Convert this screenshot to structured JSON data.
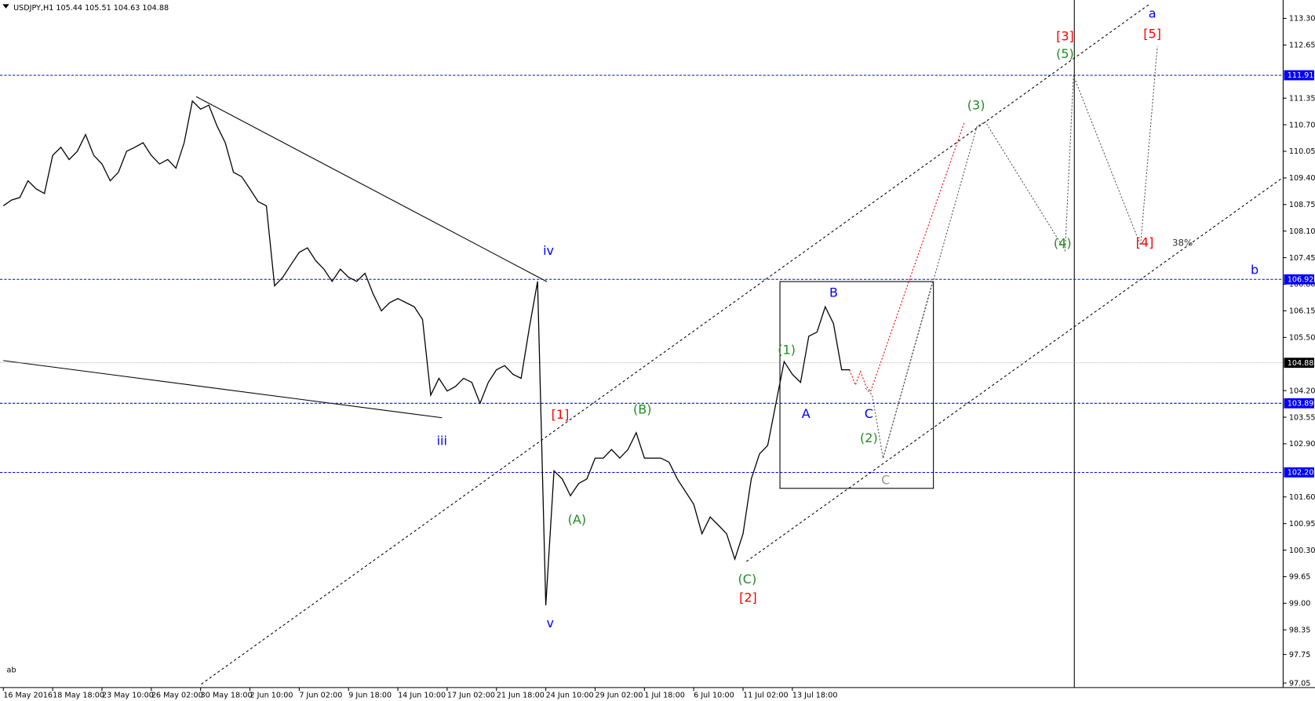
{
  "chart_data": {
    "type": "line",
    "title": "USDJPY,H1  105.44 105.51 104.63 104.88",
    "corner_label": "ab",
    "color": "#000000",
    "categories": [
      "16 May 2016",
      null,
      null,
      null,
      null,
      null,
      "18 May 18:00",
      null,
      null,
      null,
      null,
      null,
      "23 May 10:00",
      null,
      null,
      null,
      null,
      null,
      "26 May 02:00",
      null,
      null,
      null,
      null,
      null,
      "30 May 18:00",
      null,
      null,
      null,
      null,
      null,
      "2 Jun 10:00",
      null,
      null,
      null,
      null,
      null,
      "7 Jun 02:00",
      null,
      null,
      null,
      null,
      null,
      "9 Jun 18:00",
      null,
      null,
      null,
      null,
      null,
      "14 Jun 10:00",
      null,
      null,
      null,
      null,
      null,
      "17 Jun 02:00",
      null,
      null,
      null,
      null,
      null,
      "21 Jun 18:00",
      null,
      null,
      null,
      null,
      null,
      "24 Jun 10:00",
      null,
      null,
      null,
      null,
      null,
      "29 Jun 02:00",
      null,
      null,
      null,
      null,
      null,
      "1 Jul 18:00",
      null,
      null,
      null,
      null,
      null,
      "6 Jul 10:00",
      null,
      null,
      null,
      null,
      null,
      "11 Jul 02:00",
      null,
      null,
      null,
      null,
      null,
      "13 Jul 18:00",
      null,
      null,
      null,
      null,
      null,
      null,
      null
    ],
    "values": [
      108.72,
      108.86,
      108.92,
      109.33,
      109.13,
      109.02,
      109.95,
      110.15,
      109.85,
      110.05,
      110.46,
      109.95,
      109.74,
      109.33,
      109.54,
      110.05,
      110.15,
      110.26,
      109.95,
      109.74,
      109.85,
      109.64,
      110.26,
      111.28,
      111.08,
      111.18,
      110.67,
      110.26,
      109.54,
      109.43,
      109.13,
      108.82,
      108.72,
      106.76,
      106.97,
      107.28,
      107.58,
      107.69,
      107.38,
      107.17,
      106.87,
      107.17,
      106.97,
      106.87,
      107.07,
      106.56,
      106.15,
      106.35,
      106.45,
      106.35,
      106.25,
      105.94,
      104.09,
      104.5,
      104.19,
      104.3,
      104.5,
      104.4,
      103.89,
      104.4,
      104.71,
      104.81,
      104.6,
      104.5,
      105.74,
      106.87,
      98.95,
      102.24,
      102.04,
      101.63,
      101.93,
      102.04,
      102.55,
      102.55,
      102.76,
      102.55,
      102.76,
      103.17,
      102.55,
      102.55,
      102.55,
      102.45,
      102.04,
      101.73,
      101.42,
      100.7,
      101.11,
      100.91,
      100.7,
      100.08,
      100.7,
      102.04,
      102.65,
      102.86,
      103.89,
      104.91,
      104.6,
      104.4,
      105.53,
      105.63,
      106.25,
      105.84,
      104.71,
      104.71
    ],
    "ylim": [
      96.94,
      113.75
    ],
    "yticks": [
      {
        "value": 113.3,
        "label": "113.30"
      },
      {
        "value": 112.65,
        "label": "112.65"
      },
      {
        "value": 111.35,
        "label": "111.35"
      },
      {
        "value": 110.7,
        "label": "110.70"
      },
      {
        "value": 110.05,
        "label": "110.05"
      },
      {
        "value": 109.4,
        "label": "109.40"
      },
      {
        "value": 108.75,
        "label": "108.75"
      },
      {
        "value": 108.1,
        "label": "108.10"
      },
      {
        "value": 107.45,
        "label": "107.45"
      },
      {
        "value": 106.8,
        "label": "106.80"
      },
      {
        "value": 106.15,
        "label": "106.15"
      },
      {
        "value": 105.5,
        "label": "105.50"
      },
      {
        "value": 104.2,
        "label": "104.20"
      },
      {
        "value": 103.55,
        "label": "103.55"
      },
      {
        "value": 102.9,
        "label": "102.90"
      },
      {
        "value": 101.6,
        "label": "101.60"
      },
      {
        "value": 100.95,
        "label": "100.95"
      },
      {
        "value": 100.3,
        "label": "100.30"
      },
      {
        "value": 99.65,
        "label": "99.65"
      },
      {
        "value": 99,
        "label": "99.00"
      },
      {
        "value": 98.35,
        "label": "98.35"
      },
      {
        "value": 97.75,
        "label": "97.75"
      },
      {
        "value": 97.05,
        "label": "97.05"
      }
    ],
    "levels": [
      {
        "value": 111.91,
        "label": "111.91",
        "color": "#0000ff"
      },
      {
        "value": 106.92,
        "label": "106.92",
        "color": "#0000ff"
      },
      {
        "value": 104.88,
        "label": "104.88",
        "color": "#000000"
      },
      {
        "value": 103.89,
        "label": "103.89",
        "color": "#0000ff"
      },
      {
        "value": 102.2,
        "label": "102.20",
        "color": "#0000ff"
      }
    ],
    "annotations": [
      {
        "text": "iv",
        "color": "#0000ff"
      },
      {
        "text": "iii",
        "color": "#0000ff"
      },
      {
        "text": "v",
        "color": "#0000ff"
      },
      {
        "text": "[1]",
        "color": "#ff0000"
      },
      {
        "text": "(A)",
        "color": "#228b22"
      },
      {
        "text": "(B)",
        "color": "#228b22"
      },
      {
        "text": "(C)",
        "color": "#228b22"
      },
      {
        "text": "[2]",
        "color": "#ff0000"
      },
      {
        "text": "(1)",
        "color": "#228b22"
      },
      {
        "text": "A",
        "color": "#0000ff"
      },
      {
        "text": "B",
        "color": "#0000ff"
      },
      {
        "text": "C",
        "color": "#0000ff"
      },
      {
        "text": "(2)",
        "color": "#228b22"
      },
      {
        "text": "C",
        "color": "#999999"
      },
      {
        "text": "(3)",
        "color": "#228b22"
      },
      {
        "text": "(4)",
        "color": "#228b22"
      },
      {
        "text": "[3]",
        "color": "#ff0000"
      },
      {
        "text": "(5)",
        "color": "#228b22"
      },
      {
        "text": "[4]",
        "color": "#ff0000"
      },
      {
        "text": "[5]",
        "color": "#ff0000"
      },
      {
        "text": "a",
        "color": "#0000ff"
      },
      {
        "text": "b",
        "color": "#0000ff"
      },
      {
        "text": "38%",
        "color": "#333333"
      }
    ]
  }
}
